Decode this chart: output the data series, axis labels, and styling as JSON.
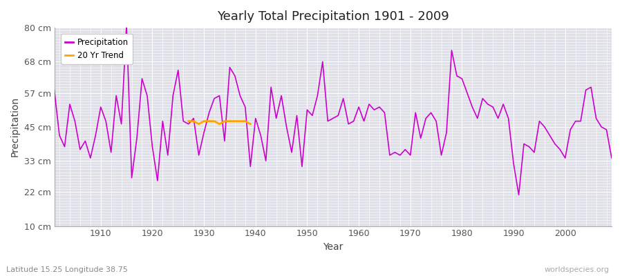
{
  "title": "Yearly Total Precipitation 1901 - 2009",
  "xlabel": "Year",
  "ylabel": "Precipitation",
  "subtitle": "Latitude 15.25 Longitude 38.75",
  "watermark": "worldspecies.org",
  "line_color": "#cc00cc",
  "trend_color": "#ffa500",
  "fig_bg_color": "#ffffff",
  "plot_bg_color": "#e0e0e8",
  "grid_color": "#ffffff",
  "ylim": [
    10,
    80
  ],
  "yticks": [
    10,
    22,
    33,
    45,
    57,
    68,
    80
  ],
  "ytick_labels": [
    "10 cm",
    "22 cm",
    "33 cm",
    "45 cm",
    "57 cm",
    "68 cm",
    "80 cm"
  ],
  "xlim": [
    1901,
    2009
  ],
  "xticks": [
    1910,
    1920,
    1930,
    1940,
    1950,
    1960,
    1970,
    1980,
    1990,
    2000
  ],
  "years": [
    1901,
    1902,
    1903,
    1904,
    1905,
    1906,
    1907,
    1908,
    1909,
    1910,
    1911,
    1912,
    1913,
    1914,
    1915,
    1916,
    1917,
    1918,
    1919,
    1920,
    1921,
    1922,
    1923,
    1924,
    1925,
    1926,
    1927,
    1928,
    1929,
    1930,
    1931,
    1932,
    1933,
    1934,
    1935,
    1936,
    1937,
    1938,
    1939,
    1940,
    1941,
    1942,
    1943,
    1944,
    1945,
    1946,
    1947,
    1948,
    1949,
    1950,
    1951,
    1952,
    1953,
    1954,
    1955,
    1956,
    1957,
    1958,
    1959,
    1960,
    1961,
    1962,
    1963,
    1964,
    1965,
    1966,
    1967,
    1968,
    1969,
    1970,
    1971,
    1972,
    1973,
    1974,
    1975,
    1976,
    1977,
    1978,
    1979,
    1980,
    1981,
    1982,
    1983,
    1984,
    1985,
    1986,
    1987,
    1988,
    1989,
    1990,
    1991,
    1992,
    1993,
    1994,
    1995,
    1996,
    1997,
    1998,
    1999,
    2000,
    2001,
    2002,
    2003,
    2004,
    2005,
    2006,
    2007,
    2008,
    2009
  ],
  "precip": [
    58,
    42,
    38,
    53,
    47,
    37,
    40,
    34,
    42,
    52,
    47,
    36,
    56,
    46,
    81,
    27,
    41,
    62,
    56,
    38,
    26,
    47,
    35,
    56,
    65,
    47,
    46,
    48,
    35,
    43,
    50,
    55,
    56,
    40,
    66,
    63,
    56,
    52,
    31,
    48,
    42,
    33,
    59,
    48,
    56,
    45,
    36,
    49,
    31,
    51,
    49,
    56,
    68,
    47,
    48,
    49,
    55,
    46,
    47,
    52,
    47,
    53,
    51,
    52,
    50,
    35,
    36,
    35,
    37,
    35,
    50,
    41,
    48,
    50,
    47,
    35,
    43,
    72,
    63,
    62,
    57,
    52,
    48,
    55,
    53,
    52,
    48,
    53,
    48,
    32,
    21,
    39,
    38,
    36,
    47,
    45,
    42,
    39,
    37,
    34,
    44,
    47,
    47,
    58,
    59,
    48,
    45,
    44,
    34
  ],
  "trend_years": [
    1927,
    1928,
    1929,
    1930,
    1931,
    1932,
    1933,
    1934,
    1935,
    1936,
    1937,
    1938,
    1939
  ],
  "trend_values": [
    47,
    47,
    46,
    47,
    47,
    47,
    46,
    47,
    47,
    47,
    47,
    47,
    46
  ]
}
